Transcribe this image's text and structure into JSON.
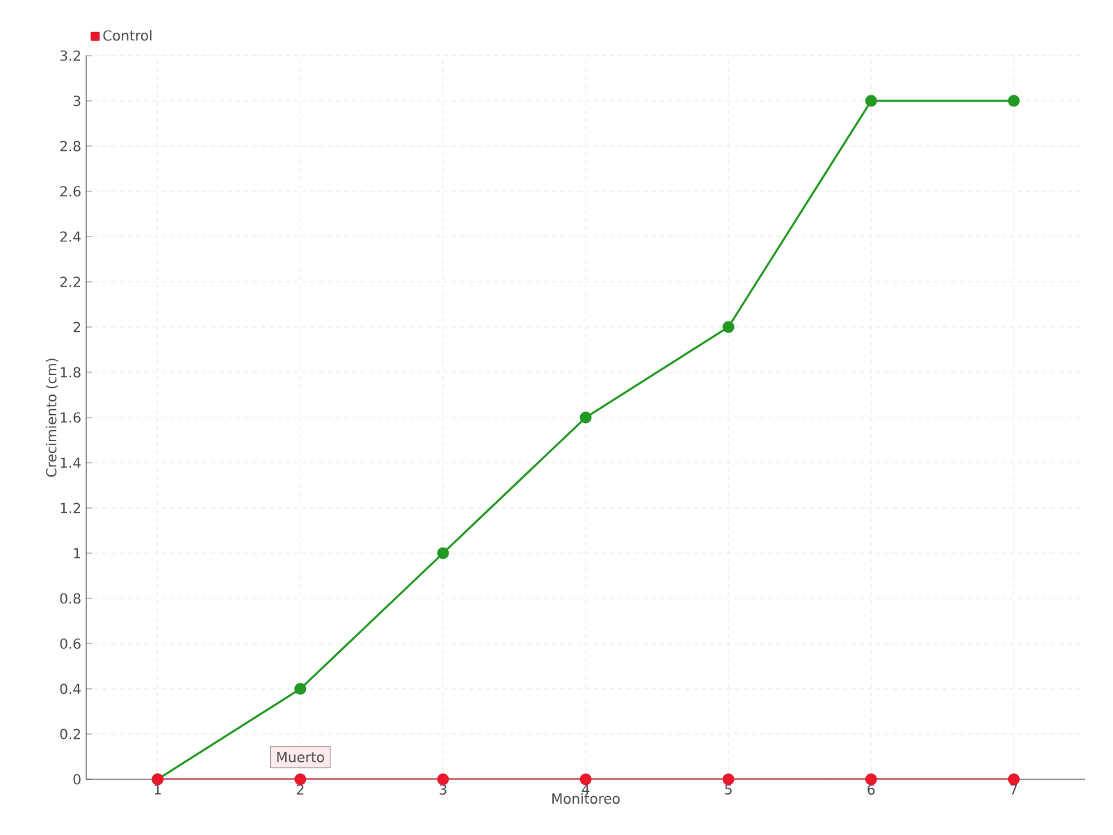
{
  "chart_data": {
    "type": "line",
    "xlabel": "Monitoreo",
    "ylabel": "Crecimiento (cm)",
    "x": [
      1,
      2,
      3,
      4,
      5,
      6,
      7
    ],
    "series": [
      {
        "color": "#229922",
        "values": [
          0,
          0.4,
          1,
          1.6,
          2,
          3,
          3
        ]
      },
      {
        "name": "Control",
        "color": "#e8192c",
        "values": [
          0,
          0,
          0,
          0,
          0,
          0,
          0
        ]
      }
    ],
    "xlim": [
      0.5,
      7.5
    ],
    "xticks": [
      1,
      2,
      3,
      4,
      5,
      6,
      7
    ],
    "ylim": [
      0,
      3.2
    ],
    "yticks": [
      0,
      0.2,
      0.4,
      0.6,
      0.8,
      1,
      1.2,
      1.4,
      1.6,
      1.8,
      2,
      2.2,
      2.4,
      2.6,
      2.8,
      3,
      3.2
    ],
    "grid": true,
    "legend": "top left",
    "marker": "circle",
    "line_style": "solid",
    "annotations": [
      {
        "text": "Muerto",
        "x": 2,
        "y": 0
      }
    ]
  }
}
